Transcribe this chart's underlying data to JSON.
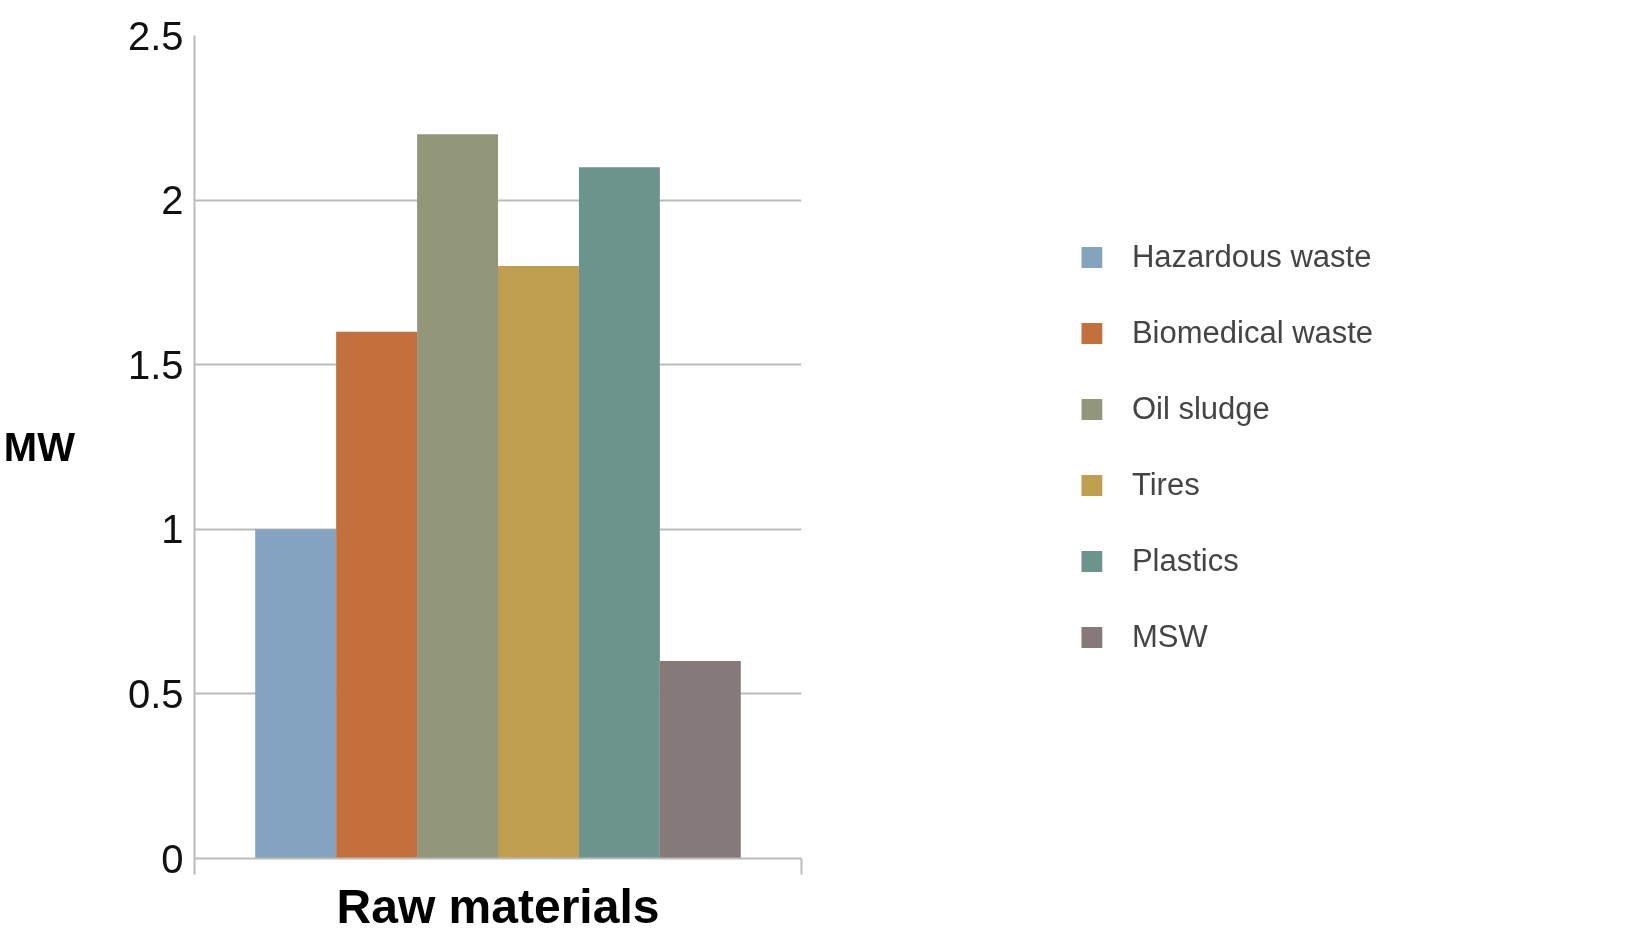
{
  "chart_data": {
    "type": "bar",
    "xlabel": "Raw materials",
    "ylabel": "MW",
    "categories": [
      null
    ],
    "series": [
      {
        "name": "Hazardous waste",
        "color": "#84a3bf",
        "values": [
          1.0
        ]
      },
      {
        "name": "Biomedical waste",
        "color": "#c4703d",
        "values": [
          1.6
        ]
      },
      {
        "name": "Oil sludge",
        "color": "#93977a",
        "values": [
          2.2
        ]
      },
      {
        "name": "Tires",
        "color": "#c09e50",
        "values": [
          1.8
        ]
      },
      {
        "name": "Plastics",
        "color": "#6b948c",
        "values": [
          2.1
        ]
      },
      {
        "name": "MSW",
        "color": "#857a79",
        "values": [
          0.6
        ]
      }
    ],
    "ylim": [
      0,
      2.5
    ],
    "yticks": [
      0,
      0.5,
      1,
      1.5,
      2,
      2.5
    ],
    "grid": "y",
    "legend": "right",
    "tick_labels": "y"
  }
}
